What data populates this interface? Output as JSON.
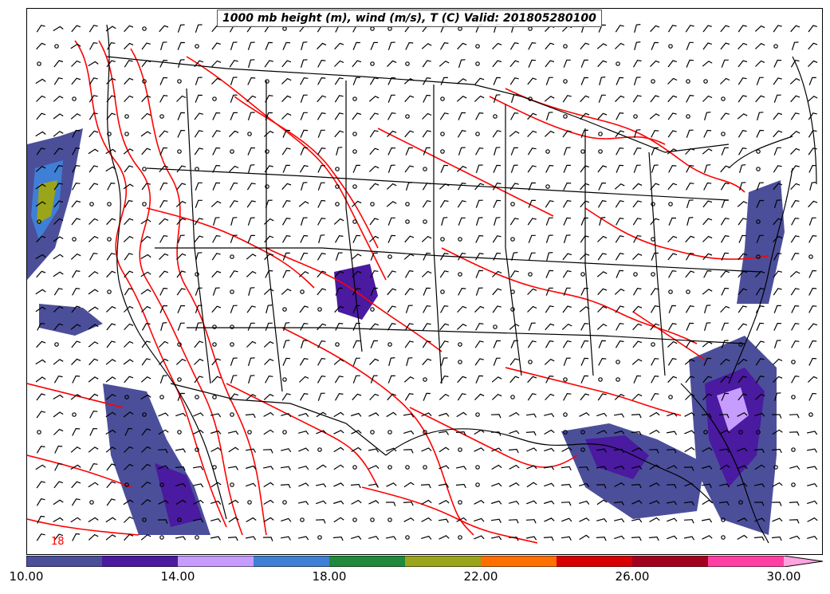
{
  "title": "1000 mb height (m), wind (m/s), T (C) Valid: 201805280100",
  "map": {
    "contour_color": "#ff0000",
    "border_color": "#000000",
    "barb_color": "#000000",
    "inline_label": "18"
  },
  "colorbar": {
    "colors": [
      "#4b4f9a",
      "#4a1aa0",
      "#c79cff",
      "#3f7fd6",
      "#1f8a3a",
      "#9aa51a",
      "#ff7000",
      "#d80000",
      "#a3001f",
      "#ff3fa3",
      "#ffa3e0"
    ],
    "ticks": [
      {
        "label": "10.00",
        "value": 10
      },
      {
        "label": "14.00",
        "value": 14
      },
      {
        "label": "18.00",
        "value": 18
      },
      {
        "label": "22.00",
        "value": 22
      },
      {
        "label": "26.00",
        "value": 26
      },
      {
        "label": "30.00",
        "value": 30
      }
    ],
    "min": 10,
    "max": 31
  }
}
